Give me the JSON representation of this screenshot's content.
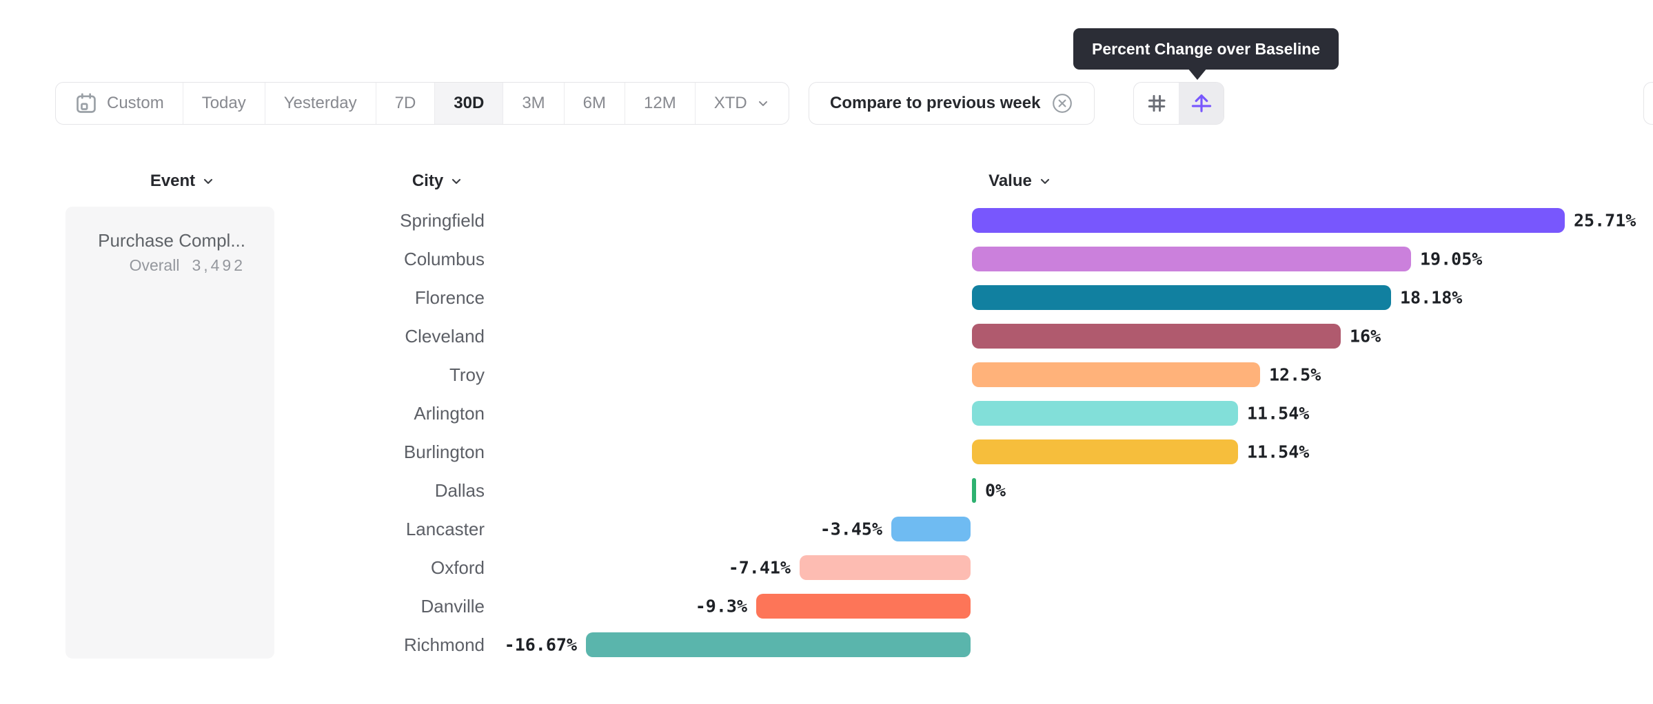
{
  "tooltip": {
    "text": "Percent Change over Baseline"
  },
  "toolbar": {
    "date_ranges": [
      {
        "label": "Custom",
        "icon": "calendar-icon"
      },
      {
        "label": "Today"
      },
      {
        "label": "Yesterday"
      },
      {
        "label": "7D"
      },
      {
        "label": "30D",
        "active": true
      },
      {
        "label": "3M"
      },
      {
        "label": "6M"
      },
      {
        "label": "12M"
      },
      {
        "label": "XTD",
        "icon": "chevron-down-icon"
      }
    ],
    "active_range": "30D",
    "compare": {
      "label": "Compare to previous week",
      "icon": "circle-x-icon"
    },
    "view_toggle": [
      {
        "name": "number-view",
        "icon": "hash-icon",
        "active": false
      },
      {
        "name": "percent-change-view",
        "icon": "arrow-up-from-baseline-icon",
        "active": true
      }
    ]
  },
  "columns": {
    "event": "Event",
    "city": "City",
    "value": "Value"
  },
  "event_panel": {
    "title": "Purchase Compl...",
    "metric_label": "Overall",
    "metric_value": "3,492"
  },
  "chart_data": {
    "type": "bar",
    "orientation": "horizontal",
    "unit": "%",
    "xlim": [
      -16.67,
      25.71
    ],
    "baseline": 0,
    "categories": [
      "Springfield",
      "Columbus",
      "Florence",
      "Cleveland",
      "Troy",
      "Arlington",
      "Burlington",
      "Dallas",
      "Lancaster",
      "Oxford",
      "Danville",
      "Richmond"
    ],
    "values": [
      25.71,
      19.05,
      18.18,
      16,
      12.5,
      11.54,
      11.54,
      0,
      -3.45,
      -7.41,
      -9.3,
      -16.67
    ],
    "value_labels": [
      "25.71%",
      "19.05%",
      "18.18%",
      "16%",
      "12.5%",
      "11.54%",
      "11.54%",
      "0%",
      "-3.45%",
      "-7.41%",
      "-9.3%",
      "-16.67%"
    ],
    "colors": [
      "#7857fd",
      "#cb80dc",
      "#1180a0",
      "#b05a6e",
      "#ffb27a",
      "#82dfd9",
      "#f6be3c",
      "#2eb170",
      "#6fbbf2",
      "#fdbcb2",
      "#fd7558",
      "#5ab5ac"
    ],
    "accent_colors": {
      "active_icon": "#7857fd",
      "zero_tick": "#2eb170"
    }
  }
}
